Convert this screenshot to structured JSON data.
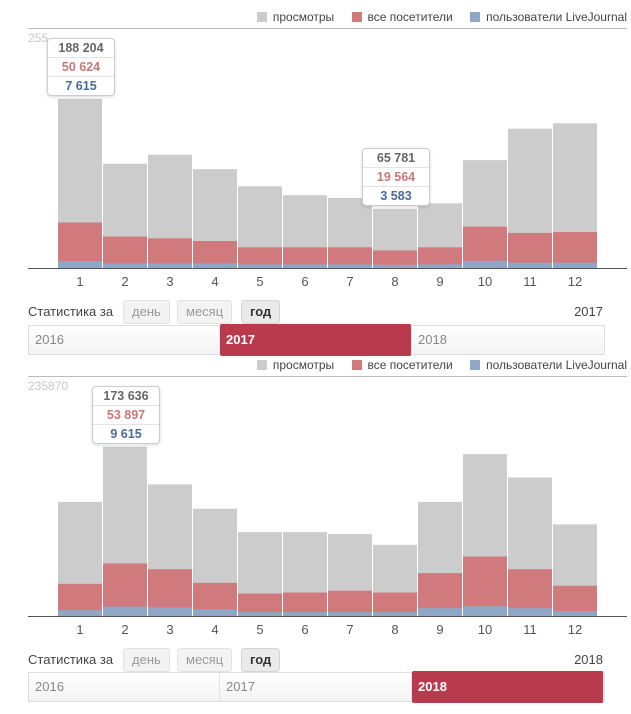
{
  "legend": {
    "views": "просмотры",
    "visitors": "все посетители",
    "lj_users": "пользователи LiveJournal"
  },
  "colors": {
    "views": "#cccccc",
    "visitors": "#d17a7d",
    "lj_users": "#8ea7c7",
    "tooltip_views": "#666666",
    "tooltip_visitors": "#cc7777",
    "tooltip_lj": "#4a6a9a",
    "active_year": "#b93a4d"
  },
  "period_label": "Статистика за",
  "period_tabs": [
    "день",
    "месяц",
    "год"
  ],
  "chart_data": [
    {
      "type": "bar",
      "stacked": true,
      "year": "2017",
      "ymax_label": "255",
      "ylim": [
        0,
        255870
      ],
      "categories": [
        "1",
        "2",
        "3",
        "4",
        "5",
        "6",
        "7",
        "8",
        "9",
        "10",
        "11",
        "12"
      ],
      "series": [
        {
          "name": "просмотры",
          "values": [
            188204,
            116000,
            126000,
            110000,
            91000,
            81000,
            78000,
            65781,
            72000,
            120000,
            155000,
            161000
          ]
        },
        {
          "name": "все посетители",
          "values": [
            50624,
            35000,
            33000,
            30000,
            23000,
            23000,
            23000,
            19564,
            23000,
            46000,
            39000,
            40000
          ]
        },
        {
          "name": "пользователи LiveJournal",
          "values": [
            7615,
            5000,
            5000,
            5000,
            4000,
            4000,
            4000,
            3583,
            4000,
            8000,
            6000,
            6000
          ]
        }
      ],
      "tooltips": [
        {
          "month_index": 0,
          "views": "188 204",
          "visitors": "50 624",
          "lj_users": "7 615"
        },
        {
          "month_index": 7,
          "views": "65 781",
          "visitors": "19 564",
          "lj_users": "3 583"
        }
      ],
      "years": [
        "2016",
        "2017",
        "2018"
      ],
      "active_year_index": 1
    },
    {
      "type": "bar",
      "stacked": true,
      "year": "2018",
      "ymax_label": "235870",
      "ylim": [
        0,
        235870
      ],
      "categories": [
        "1",
        "2",
        "3",
        "4",
        "5",
        "6",
        "7",
        "8",
        "9",
        "10",
        "11",
        "12"
      ],
      "series": [
        {
          "name": "просмотры",
          "values": [
            117000,
            173636,
            135000,
            110000,
            86000,
            86000,
            84000,
            73000,
            117000,
            166000,
            142000,
            94000
          ]
        },
        {
          "name": "все посетители",
          "values": [
            33000,
            53897,
            48000,
            34000,
            23000,
            24000,
            26000,
            24000,
            44000,
            61000,
            48000,
            31000
          ]
        },
        {
          "name": "пользователи LiveJournal",
          "values": [
            6000,
            9615,
            9000,
            7000,
            4000,
            4000,
            4000,
            4000,
            8000,
            10000,
            8000,
            5000
          ]
        }
      ],
      "tooltips": [
        {
          "month_index": 1,
          "views": "173 636",
          "visitors": "53 897",
          "lj_users": "9 615"
        }
      ],
      "years": [
        "2016",
        "2017",
        "2018"
      ],
      "active_year_index": 2
    }
  ]
}
